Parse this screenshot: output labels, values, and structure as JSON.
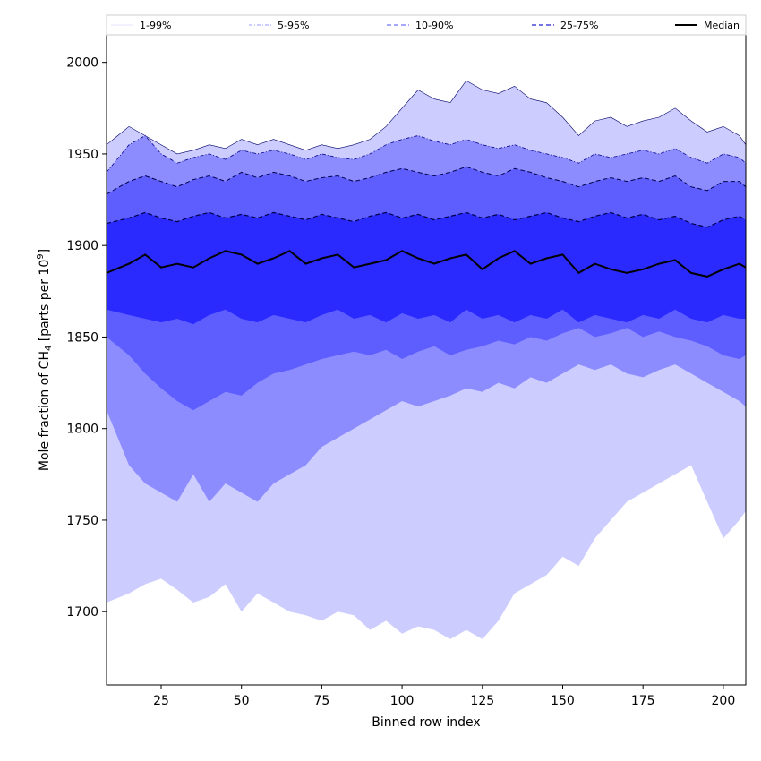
{
  "chart_data": {
    "type": "area",
    "title": "",
    "xlabel": "Binned row index",
    "ylabel_main": "Mole fraction of CH",
    "ylabel_sub": "4",
    "ylabel_mid": " [parts per 10",
    "ylabel_sup": "9",
    "ylabel_end": "]",
    "xlim": [
      8,
      207
    ],
    "ylim": [
      1660,
      2015
    ],
    "xticks": [
      25,
      50,
      75,
      100,
      125,
      150,
      175,
      200
    ],
    "yticks": [
      1700,
      1750,
      1800,
      1850,
      1900,
      1950,
      2000
    ],
    "grid": false,
    "legend_position": "top",
    "x": [
      8,
      15,
      20,
      25,
      30,
      35,
      40,
      45,
      50,
      55,
      60,
      65,
      70,
      75,
      80,
      85,
      90,
      95,
      100,
      105,
      110,
      115,
      120,
      125,
      130,
      135,
      140,
      145,
      150,
      155,
      160,
      165,
      170,
      175,
      180,
      185,
      190,
      195,
      200,
      205,
      207
    ],
    "median": [
      1885,
      1890,
      1895,
      1888,
      1890,
      1888,
      1893,
      1897,
      1895,
      1890,
      1893,
      1897,
      1890,
      1893,
      1895,
      1888,
      1890,
      1892,
      1897,
      1893,
      1890,
      1893,
      1895,
      1887,
      1893,
      1897,
      1890,
      1893,
      1895,
      1885,
      1890,
      1887,
      1885,
      1887,
      1890,
      1892,
      1885,
      1883,
      1887,
      1890,
      1888
    ],
    "p25": [
      1865,
      1862,
      1860,
      1858,
      1860,
      1857,
      1862,
      1865,
      1860,
      1858,
      1862,
      1860,
      1858,
      1862,
      1865,
      1860,
      1862,
      1858,
      1863,
      1860,
      1862,
      1858,
      1865,
      1860,
      1862,
      1858,
      1862,
      1860,
      1865,
      1858,
      1862,
      1860,
      1858,
      1862,
      1860,
      1865,
      1860,
      1858,
      1862,
      1860,
      1860
    ],
    "p75": [
      1912,
      1915,
      1918,
      1915,
      1913,
      1916,
      1918,
      1915,
      1917,
      1915,
      1918,
      1916,
      1914,
      1917,
      1915,
      1913,
      1916,
      1918,
      1915,
      1917,
      1914,
      1916,
      1918,
      1915,
      1917,
      1914,
      1916,
      1918,
      1915,
      1913,
      1916,
      1918,
      1915,
      1917,
      1914,
      1916,
      1912,
      1910,
      1914,
      1916,
      1914
    ],
    "p10": [
      1850,
      1840,
      1830,
      1822,
      1815,
      1810,
      1815,
      1820,
      1818,
      1825,
      1830,
      1832,
      1835,
      1838,
      1840,
      1842,
      1840,
      1843,
      1838,
      1842,
      1845,
      1840,
      1843,
      1845,
      1848,
      1846,
      1850,
      1848,
      1852,
      1855,
      1850,
      1852,
      1855,
      1850,
      1853,
      1850,
      1848,
      1845,
      1840,
      1838,
      1840
    ],
    "p90": [
      1928,
      1935,
      1938,
      1935,
      1932,
      1936,
      1938,
      1935,
      1940,
      1937,
      1940,
      1938,
      1935,
      1937,
      1938,
      1935,
      1937,
      1940,
      1942,
      1940,
      1938,
      1940,
      1943,
      1940,
      1938,
      1942,
      1940,
      1937,
      1935,
      1932,
      1935,
      1937,
      1935,
      1937,
      1935,
      1938,
      1932,
      1930,
      1935,
      1935,
      1932
    ],
    "p5": [
      1810,
      1780,
      1770,
      1765,
      1760,
      1775,
      1760,
      1770,
      1765,
      1760,
      1770,
      1775,
      1780,
      1790,
      1795,
      1800,
      1805,
      1810,
      1815,
      1812,
      1815,
      1818,
      1822,
      1820,
      1825,
      1822,
      1828,
      1825,
      1830,
      1835,
      1832,
      1835,
      1830,
      1828,
      1832,
      1835,
      1830,
      1825,
      1820,
      1815,
      1812
    ],
    "p95": [
      1940,
      1955,
      1960,
      1950,
      1945,
      1948,
      1950,
      1947,
      1952,
      1950,
      1952,
      1950,
      1947,
      1950,
      1948,
      1947,
      1950,
      1955,
      1958,
      1960,
      1957,
      1955,
      1958,
      1955,
      1953,
      1955,
      1952,
      1950,
      1948,
      1945,
      1950,
      1948,
      1950,
      1952,
      1950,
      1953,
      1948,
      1945,
      1950,
      1948,
      1945
    ],
    "p1": [
      1705,
      1710,
      1715,
      1718,
      1712,
      1705,
      1708,
      1715,
      1700,
      1710,
      1705,
      1700,
      1698,
      1695,
      1700,
      1698,
      1690,
      1695,
      1688,
      1692,
      1690,
      1685,
      1690,
      1685,
      1695,
      1710,
      1715,
      1720,
      1730,
      1725,
      1740,
      1750,
      1760,
      1765,
      1770,
      1775,
      1780,
      1760,
      1740,
      1750,
      1755
    ],
    "p99": [
      1955,
      1965,
      1960,
      1955,
      1950,
      1952,
      1955,
      1953,
      1958,
      1955,
      1958,
      1955,
      1952,
      1955,
      1953,
      1955,
      1958,
      1965,
      1975,
      1985,
      1980,
      1978,
      1990,
      1985,
      1983,
      1987,
      1980,
      1978,
      1970,
      1960,
      1968,
      1970,
      1965,
      1968,
      1970,
      1975,
      1968,
      1962,
      1965,
      1960,
      1955
    ],
    "legend": [
      {
        "label": "1-99%",
        "line_color": "#c8c8ff",
        "dash": "solid",
        "width": 0.6
      },
      {
        "label": "5-95%",
        "line_color": "#7a7aff",
        "dash": "dashdot",
        "width": 0.8
      },
      {
        "label": "10-90%",
        "line_color": "#4f4fff",
        "dash": "dashed",
        "width": 1.0
      },
      {
        "label": "25-75%",
        "line_color": "#2020d0",
        "dash": "dashed",
        "width": 1.2
      },
      {
        "label": "Median",
        "line_color": "#000000",
        "dash": "solid",
        "width": 2
      }
    ],
    "colors": {
      "band_1_99": "#ccccff",
      "band_5_95": "#8c8cff",
      "band_10_90": "#5e5eff",
      "band_25_75": "#2a2aff",
      "edge_1_99": "#000066",
      "edge_5_95": "#000088",
      "edge_10_90": "#00004a",
      "edge_25_75": "#00004a",
      "median": "#000000"
    }
  }
}
